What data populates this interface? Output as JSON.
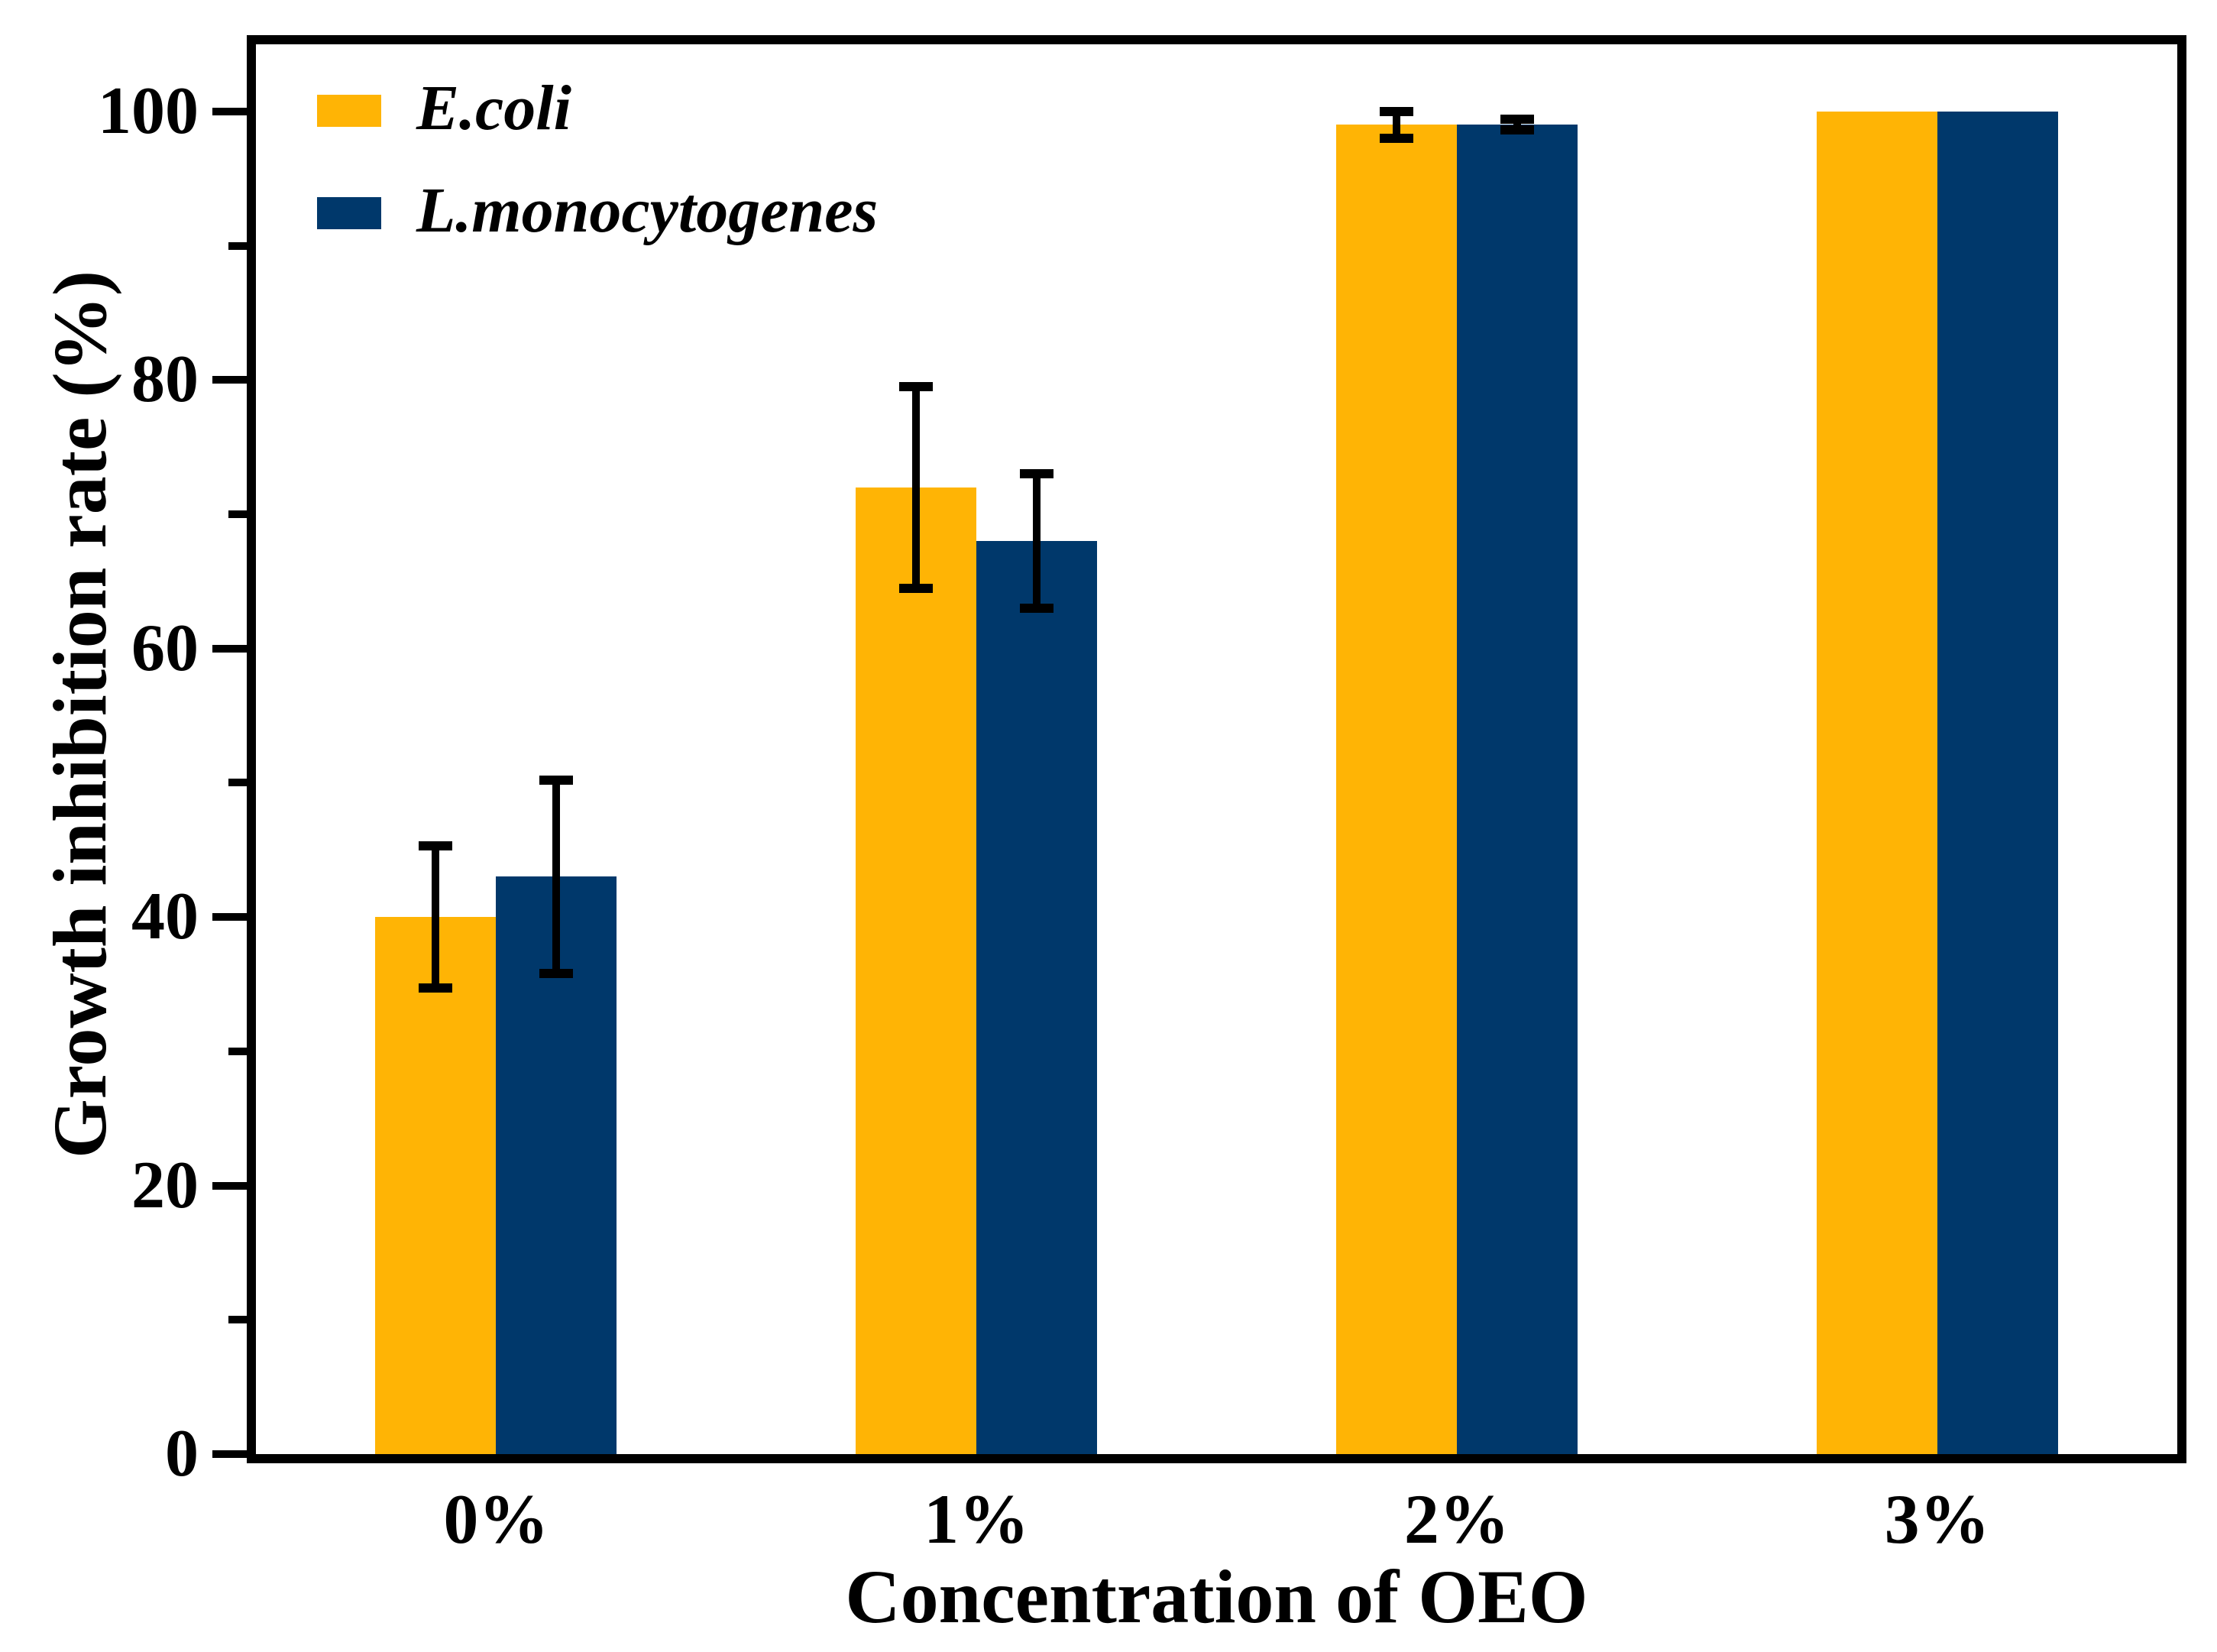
{
  "chart_data": {
    "type": "bar",
    "title": "",
    "categories": [
      "0%",
      "1%",
      "2%",
      "3%"
    ],
    "series": [
      {
        "name": "E.coli",
        "color": "#FFB405",
        "values": [
          40,
          72,
          99,
          100
        ],
        "errors": [
          5.3,
          7.5,
          1.0,
          0
        ]
      },
      {
        "name": "L.monocytogenes",
        "color": "#00386B",
        "values": [
          43,
          68,
          99,
          100
        ],
        "errors": [
          7.2,
          5.0,
          0.4,
          0
        ]
      }
    ],
    "xlabel": "Concentration of OEO",
    "ylabel": "Growth inhibition rate (%)",
    "ylim": [
      0,
      105
    ],
    "yticks_major": [
      0,
      20,
      40,
      60,
      80,
      100
    ],
    "yticks_minor": [
      10,
      30,
      50,
      70,
      90
    ],
    "legend_position": "top-left-inside",
    "grid": false,
    "axis_color": "#000000",
    "error_bar_color": "#000000"
  }
}
